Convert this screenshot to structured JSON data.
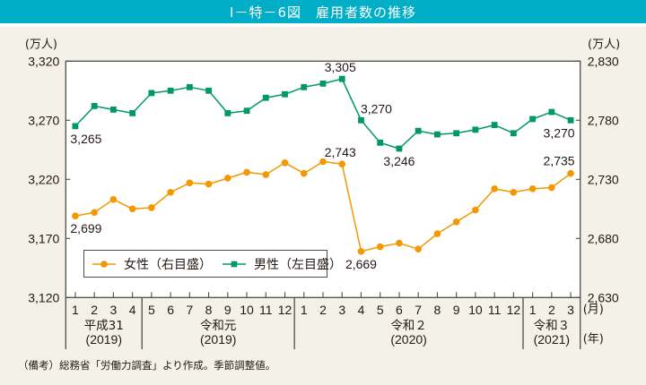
{
  "title": "Ⅰ－特－6図　雇用者数の推移",
  "footnote": "（備考）総務省「労働力調査」より作成。季節調整値。",
  "colors": {
    "title_bar": "#00aec8",
    "page_background": "#f4f1e8",
    "female": "#f39800",
    "male": "#00976a"
  },
  "chart_data": {
    "type": "line",
    "title": "雇用者数の推移",
    "x": [
      "1",
      "2",
      "3",
      "4",
      "5",
      "6",
      "7",
      "8",
      "9",
      "10",
      "11",
      "12",
      "1",
      "2",
      "3",
      "4",
      "5",
      "6",
      "7",
      "8",
      "9",
      "10",
      "11",
      "12",
      "1",
      "2",
      "3"
    ],
    "x_month_unit": "(月)",
    "x_year_unit": "(年)",
    "x_groups": [
      {
        "era": "平成31",
        "year": "(2019)",
        "start_index": 0,
        "count": 4
      },
      {
        "era": "令和元",
        "year": "(2019)",
        "start_index": 4,
        "count": 8
      },
      {
        "era": "令和２",
        "year": "(2020)",
        "start_index": 12,
        "count": 12
      },
      {
        "era": "令和３",
        "year": "(2021)",
        "start_index": 24,
        "count": 3
      }
    ],
    "y_left": {
      "label": "(万人)",
      "lim": [
        3120,
        3320
      ],
      "ticks": [
        3120,
        3170,
        3220,
        3270,
        3320
      ],
      "tick_labels": [
        "3,120",
        "3,170",
        "3,220",
        "3,270",
        "3,320"
      ]
    },
    "y_right": {
      "label": "(万人)",
      "lim": [
        2630,
        2830
      ],
      "ticks": [
        2630,
        2680,
        2730,
        2780,
        2830
      ],
      "tick_labels": [
        "2,630",
        "2,680",
        "2,730",
        "2,780",
        "2,830"
      ]
    },
    "series": [
      {
        "key": "female",
        "name": "女性（右目盛）",
        "axis": "right",
        "marker": "circle",
        "color": "#f39800",
        "values": [
          2699,
          2702,
          2713,
          2705,
          2706,
          2719,
          2727,
          2726,
          2731,
          2736,
          2734,
          2744,
          2735,
          2745,
          2743,
          2669,
          2673,
          2676,
          2671,
          2684,
          2694,
          2704,
          2722,
          2719,
          2722,
          2723,
          2735
        ]
      },
      {
        "key": "male",
        "name": "男性（左目盛）",
        "axis": "left",
        "marker": "square",
        "color": "#00976a",
        "values": [
          3265,
          3282,
          3279,
          3276,
          3293,
          3295,
          3298,
          3295,
          3276,
          3278,
          3289,
          3292,
          3298,
          3301,
          3305,
          3270,
          3251,
          3246,
          3261,
          3258,
          3259,
          3262,
          3266,
          3259,
          3271,
          3277,
          3270
        ]
      }
    ],
    "annotations": [
      {
        "series": 1,
        "index": 0,
        "text": "3,265",
        "placement": "below-right"
      },
      {
        "series": 1,
        "index": 14,
        "text": "3,305",
        "placement": "above"
      },
      {
        "series": 1,
        "index": 15,
        "text": "3,270",
        "placement": "above-right"
      },
      {
        "series": 1,
        "index": 17,
        "text": "3,246",
        "placement": "below"
      },
      {
        "series": 1,
        "index": 26,
        "text": "3,270",
        "placement": "below-left"
      },
      {
        "series": 0,
        "index": 0,
        "text": "2,699",
        "placement": "below-right"
      },
      {
        "series": 0,
        "index": 14,
        "text": "2,743",
        "placement": "above"
      },
      {
        "series": 0,
        "index": 15,
        "text": "2,669",
        "placement": "below"
      },
      {
        "series": 0,
        "index": 26,
        "text": "2,735",
        "placement": "above-left"
      }
    ],
    "legend": {
      "placement": "lower-left inside plot"
    },
    "grid": false
  }
}
